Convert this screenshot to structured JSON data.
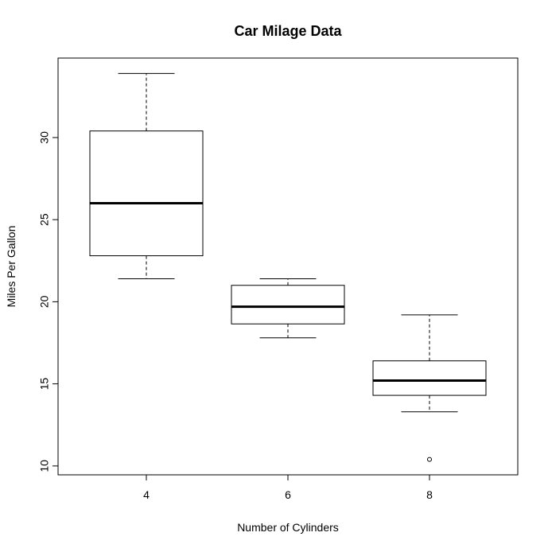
{
  "chart_data": {
    "type": "boxplot",
    "title": "Car Milage Data",
    "x_label": "Number of Cylinders",
    "y_label": "Miles Per Gallon",
    "categories": [
      "4",
      "6",
      "8"
    ],
    "boxes": [
      {
        "whisker_low": 21.4,
        "q1": 22.8,
        "median": 26.0,
        "q3": 30.4,
        "whisker_high": 33.9,
        "outliers": []
      },
      {
        "whisker_low": 17.8,
        "q1": 18.65,
        "median": 19.7,
        "q3": 21.0,
        "whisker_high": 21.4,
        "outliers": []
      },
      {
        "whisker_low": 13.3,
        "q1": 14.3,
        "median": 15.2,
        "q3": 16.4,
        "whisker_high": 19.2,
        "outliers": [
          10.4
        ]
      }
    ],
    "ylim": [
      9.46,
      34.84
    ],
    "yticks": [
      10,
      15,
      20,
      25,
      30
    ],
    "color": "#000000"
  }
}
